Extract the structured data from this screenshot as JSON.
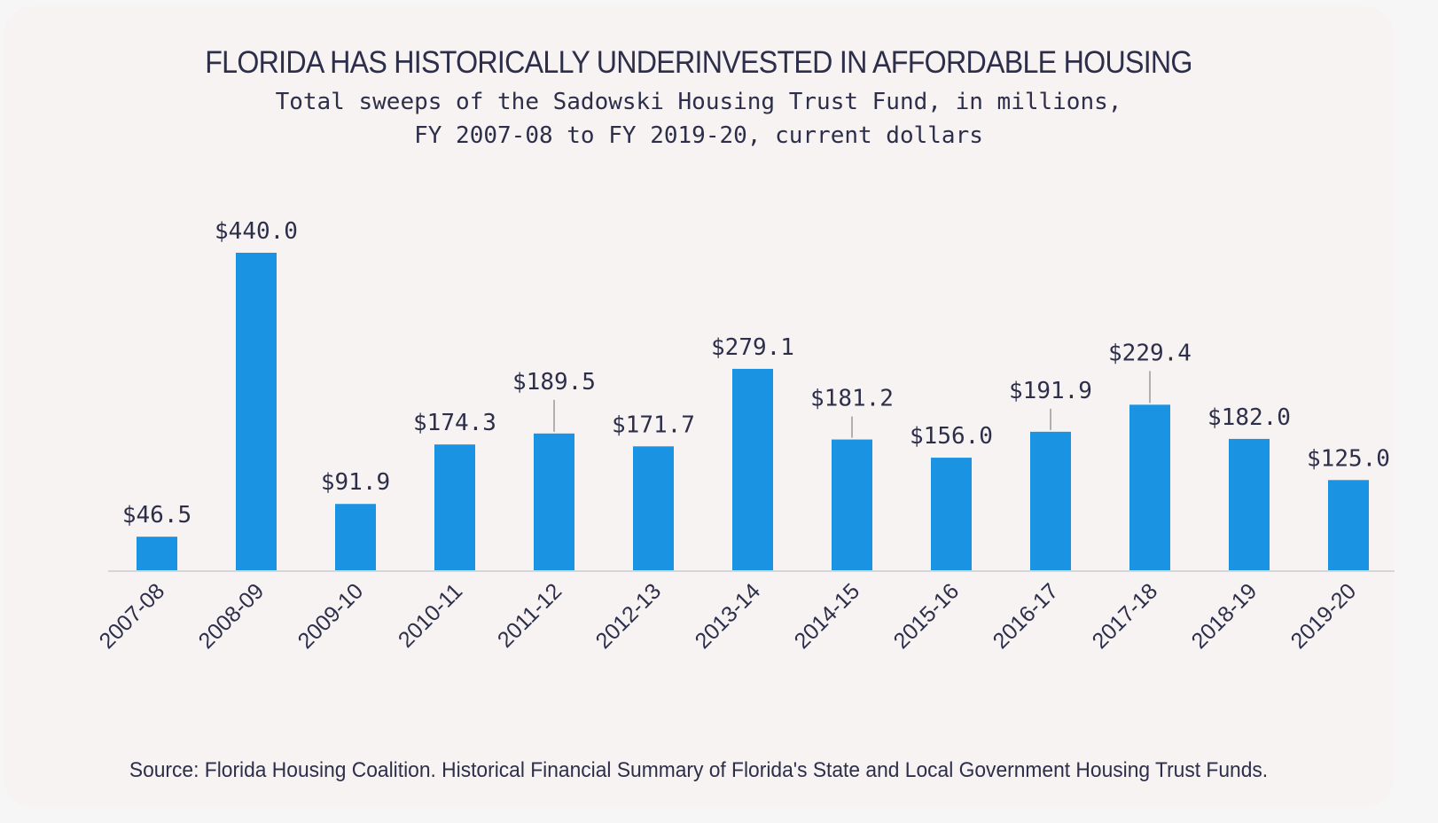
{
  "chart_data": {
    "type": "bar",
    "title": "FLORIDA HAS HISTORICALLY UNDERINVESTED IN AFFORDABLE HOUSING",
    "subtitle": [
      "Total sweeps of the Sadowski Housing Trust Fund, in millions,",
      "FY 2007-08 to FY 2019-20, current dollars"
    ],
    "xlabel": "",
    "ylabel": "",
    "ylim": [
      0,
      440
    ],
    "grid": false,
    "categories": [
      "2007-08",
      "2008-09",
      "2009-10",
      "2010-11",
      "2011-12",
      "2012-13",
      "2013-14",
      "2014-15",
      "2015-16",
      "2016-17",
      "2017-18",
      "2018-19",
      "2019-20"
    ],
    "values": [
      46.5,
      440.0,
      91.9,
      174.3,
      189.5,
      171.7,
      279.1,
      181.2,
      156.0,
      191.9,
      229.4,
      182.0,
      125.0
    ],
    "data_labels": [
      "$46.5",
      "$440.0",
      "$91.9",
      "$174.3",
      "$189.5",
      "$171.7",
      "$279.1",
      "$181.2",
      "$156.0",
      "$191.9",
      "$229.4",
      "$182.0",
      "$125.0"
    ],
    "label_leader_lines": [
      false,
      false,
      false,
      false,
      true,
      false,
      false,
      true,
      false,
      true,
      true,
      false,
      false
    ],
    "bar_color": "#1a94e2",
    "source": "Source: Florida Housing Coalition. Historical Financial Summary of Florida's State and Local Government Housing Trust Funds."
  }
}
